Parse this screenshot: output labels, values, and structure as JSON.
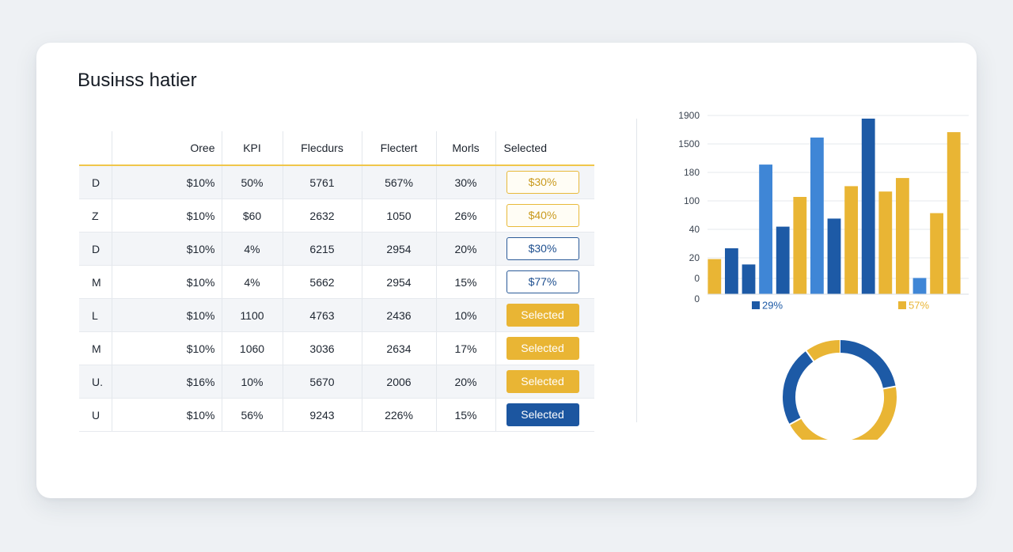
{
  "page": {
    "title": "Busінss hatier"
  },
  "table": {
    "columns": [
      "",
      "Oree",
      "KPI",
      "Flecdurs",
      "Flectert",
      "Morls",
      "Selected"
    ],
    "rows": [
      {
        "label": "D",
        "orders": "$10%",
        "kpi": "50%",
        "c3": "5761",
        "c4": "567%",
        "c5": "30%",
        "selected": "$30%",
        "style": "out-yellow"
      },
      {
        "label": "Z",
        "orders": "$10%",
        "kpi": "$60",
        "c3": "2632",
        "c4": "1050",
        "c5": "26%",
        "selected": "$40%",
        "style": "out-yellow"
      },
      {
        "label": "D",
        "orders": "$10%",
        "kpi": "4%",
        "c3": "6215",
        "c4": "2954",
        "c5": "20%",
        "selected": "$30%",
        "style": "out-blue"
      },
      {
        "label": "M",
        "orders": "$10%",
        "kpi": "4%",
        "c3": "5662",
        "c4": "2954",
        "c5": "15%",
        "selected": "$77%",
        "style": "out-blue"
      },
      {
        "label": "L",
        "orders": "$10%",
        "kpi": "1100",
        "c3": "4763",
        "c4": "2436",
        "c5": "10%",
        "selected": "Selected",
        "style": "fill-yellow"
      },
      {
        "label": "M",
        "orders": "$10%",
        "kpi": "1060",
        "c3": "3036",
        "c4": "2634",
        "c5": "17%",
        "selected": "Selected",
        "style": "fill-yellow"
      },
      {
        "label": "U.",
        "orders": "$16%",
        "kpi": "10%",
        "c3": "5670",
        "c4": "2006",
        "c5": "20%",
        "selected": "Selected",
        "style": "fill-yellow"
      },
      {
        "label": "U",
        "orders": "$10%",
        "kpi": "56%",
        "c3": "9243",
        "c4": "226%",
        "c5": "15%",
        "selected": "Selected",
        "style": "fill-blue"
      }
    ]
  },
  "colors": {
    "blue": "#1d5aa6",
    "light_blue": "#3f86d6",
    "yellow": "#e9b534",
    "accent_line": "#f0c64a"
  },
  "chart_data": [
    {
      "type": "bar",
      "title": "",
      "y_tick_labels": [
        "1900",
        "1500",
        "180",
        "100",
        "40",
        "20",
        "0",
        "0"
      ],
      "ylim": [
        0,
        6.5
      ],
      "grid": true,
      "bars": [
        {
          "value": 1.3,
          "color": "yellow"
        },
        {
          "value": 1.7,
          "color": "blue"
        },
        {
          "value": 1.1,
          "color": "blue"
        },
        {
          "value": 4.8,
          "color": "light_blue"
        },
        {
          "value": 2.5,
          "color": "blue"
        },
        {
          "value": 3.6,
          "color": "yellow"
        },
        {
          "value": 5.8,
          "color": "light_blue"
        },
        {
          "value": 2.8,
          "color": "blue"
        },
        {
          "value": 4.0,
          "color": "yellow"
        },
        {
          "value": 6.5,
          "color": "blue"
        },
        {
          "value": 3.8,
          "color": "yellow"
        },
        {
          "value": 4.3,
          "color": "yellow"
        },
        {
          "value": 0.6,
          "color": "light_blue"
        },
        {
          "value": 3.0,
          "color": "yellow"
        },
        {
          "value": 6.0,
          "color": "yellow"
        }
      ]
    },
    {
      "type": "pie",
      "title": "",
      "legend": [
        {
          "label": "29%",
          "color": "blue"
        },
        {
          "label": "57%",
          "color": "yellow"
        }
      ],
      "slices": [
        {
          "value": 22,
          "color": "blue"
        },
        {
          "value": 45,
          "color": "yellow"
        },
        {
          "value": 23,
          "color": "blue"
        },
        {
          "value": 10,
          "color": "yellow"
        }
      ]
    }
  ]
}
